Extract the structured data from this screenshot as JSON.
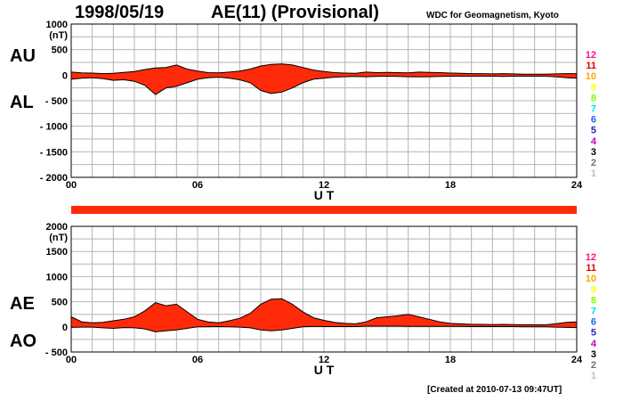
{
  "header": {
    "date": "1998/05/19",
    "title": "AE(11) (Provisional)",
    "source": "WDC for Geomagnetism, Kyoto"
  },
  "footer": {
    "created": "[Created at 2010-07-13 09:47UT]"
  },
  "colors": {
    "fill": "#ff2a0a",
    "grid": "#b4b4b4",
    "axis": "#000000"
  },
  "station_count_legend": [
    {
      "label": "12",
      "color": "#ff1493"
    },
    {
      "label": "11",
      "color": "#e00000"
    },
    {
      "label": "10",
      "color": "#ffa500"
    },
    {
      "label": "9",
      "color": "#ffff00"
    },
    {
      "label": "8",
      "color": "#7cfc00"
    },
    {
      "label": "7",
      "color": "#00e5ee"
    },
    {
      "label": "6",
      "color": "#1e64ff"
    },
    {
      "label": "5",
      "color": "#3020c0"
    },
    {
      "label": "4",
      "color": "#c000c0"
    },
    {
      "label": "3",
      "color": "#000000"
    },
    {
      "label": "2",
      "color": "#707070"
    },
    {
      "label": "1",
      "color": "#c0c0c0"
    }
  ],
  "station_coverage_bar": {
    "station_count": 11,
    "color": "#ff2a0a",
    "from_hour": 0,
    "to_hour": 24
  },
  "chart_data": [
    {
      "type": "area",
      "name": "AU / AL",
      "labels": {
        "upper": "AU",
        "lower": "AL"
      },
      "unit_label": "(nT)",
      "xlabel": "U T",
      "x_ticks": [
        "00",
        "06",
        "12",
        "18",
        "24"
      ],
      "xlim": [
        0,
        24
      ],
      "ylim": [
        -2000,
        1000
      ],
      "y_ticks": [
        "1000",
        "500",
        "0",
        "- 500",
        "- 1000",
        "- 1500",
        "- 2000"
      ],
      "y_tick_values": [
        1000,
        500,
        0,
        -500,
        -1000,
        -1500,
        -2000
      ],
      "grid": true,
      "series": [
        {
          "name": "AU",
          "x": [
            0,
            0.5,
            1,
            1.5,
            2,
            2.5,
            3,
            3.5,
            4,
            4.5,
            5,
            5.5,
            6,
            6.5,
            7,
            7.5,
            8,
            8.5,
            9,
            9.5,
            10,
            10.5,
            11,
            11.5,
            12,
            12.5,
            13,
            13.5,
            14,
            14.5,
            15,
            15.5,
            16,
            16.5,
            17,
            17.5,
            18,
            18.5,
            19,
            19.5,
            20,
            20.5,
            21,
            21.5,
            22,
            22.5,
            23,
            23.5,
            24
          ],
          "values": [
            60,
            45,
            40,
            30,
            35,
            55,
            70,
            110,
            140,
            150,
            200,
            120,
            80,
            50,
            45,
            60,
            80,
            120,
            180,
            210,
            220,
            200,
            150,
            100,
            70,
            50,
            40,
            35,
            60,
            50,
            55,
            50,
            45,
            60,
            55,
            50,
            40,
            35,
            30,
            30,
            25,
            30,
            25,
            20,
            20,
            20,
            25,
            30,
            30
          ]
        },
        {
          "name": "AL",
          "x": [
            0,
            0.5,
            1,
            1.5,
            2,
            2.5,
            3,
            3.5,
            4,
            4.5,
            5,
            5.5,
            6,
            6.5,
            7,
            7.5,
            8,
            8.5,
            9,
            9.5,
            10,
            10.5,
            11,
            11.5,
            12,
            12.5,
            13,
            13.5,
            14,
            14.5,
            15,
            15.5,
            16,
            16.5,
            17,
            17.5,
            18,
            18.5,
            19,
            19.5,
            20,
            20.5,
            21,
            21.5,
            22,
            22.5,
            23,
            23.5,
            24
          ],
          "values": [
            -80,
            -60,
            -50,
            -70,
            -100,
            -90,
            -120,
            -200,
            -380,
            -250,
            -220,
            -150,
            -80,
            -50,
            -40,
            -60,
            -90,
            -150,
            -300,
            -360,
            -330,
            -250,
            -150,
            -80,
            -60,
            -40,
            -30,
            -25,
            -30,
            -25,
            -20,
            -25,
            -30,
            -35,
            -30,
            -25,
            -20,
            -20,
            -20,
            -20,
            -20,
            -25,
            -20,
            -20,
            -20,
            -20,
            -30,
            -50,
            -60
          ]
        }
      ]
    },
    {
      "type": "area",
      "name": "AE / AO",
      "labels": {
        "upper": "AE",
        "lower": "AO"
      },
      "unit_label": "(nT)",
      "xlabel": "U T",
      "x_ticks": [
        "00",
        "06",
        "12",
        "18",
        "24"
      ],
      "xlim": [
        0,
        24
      ],
      "ylim": [
        -500,
        2000
      ],
      "y_ticks": [
        "2000",
        "1500",
        "1000",
        "500",
        "0",
        "- 500"
      ],
      "y_tick_values": [
        2000,
        1500,
        1000,
        500,
        0,
        -500
      ],
      "grid": true,
      "series": [
        {
          "name": "AE",
          "x": [
            0,
            0.5,
            1,
            1.5,
            2,
            2.5,
            3,
            3.5,
            4,
            4.5,
            5,
            5.5,
            6,
            6.5,
            7,
            7.5,
            8,
            8.5,
            9,
            9.5,
            10,
            10.5,
            11,
            11.5,
            12,
            12.5,
            13,
            13.5,
            14,
            14.5,
            15,
            15.5,
            16,
            16.5,
            17,
            17.5,
            18,
            18.5,
            19,
            19.5,
            20,
            20.5,
            21,
            21.5,
            22,
            22.5,
            23,
            23.5,
            24
          ],
          "values": [
            200,
            100,
            80,
            90,
            120,
            150,
            200,
            320,
            480,
            420,
            450,
            300,
            150,
            100,
            80,
            120,
            170,
            270,
            450,
            550,
            560,
            450,
            300,
            180,
            130,
            90,
            70,
            60,
            100,
            180,
            200,
            220,
            250,
            200,
            150,
            100,
            70,
            60,
            50,
            50,
            45,
            50,
            45,
            40,
            40,
            40,
            60,
            90,
            100
          ]
        },
        {
          "name": "AO",
          "x": [
            0,
            0.5,
            1,
            1.5,
            2,
            2.5,
            3,
            3.5,
            4,
            4.5,
            5,
            5.5,
            6,
            6.5,
            7,
            7.5,
            8,
            8.5,
            9,
            9.5,
            10,
            10.5,
            11,
            11.5,
            12,
            12.5,
            13,
            13.5,
            14,
            14.5,
            15,
            15.5,
            16,
            16.5,
            17,
            17.5,
            18,
            18.5,
            19,
            19.5,
            20,
            20.5,
            21,
            21.5,
            22,
            22.5,
            23,
            23.5,
            24
          ],
          "values": [
            -10,
            -5,
            -5,
            -20,
            -30,
            -15,
            -20,
            -40,
            -100,
            -80,
            -60,
            -30,
            0,
            0,
            5,
            0,
            -5,
            -20,
            -60,
            -80,
            -60,
            -30,
            0,
            10,
            5,
            5,
            5,
            5,
            15,
            15,
            15,
            15,
            10,
            10,
            10,
            10,
            10,
            10,
            5,
            5,
            5,
            5,
            5,
            0,
            0,
            0,
            -5,
            -10,
            -15
          ]
        }
      ]
    }
  ]
}
